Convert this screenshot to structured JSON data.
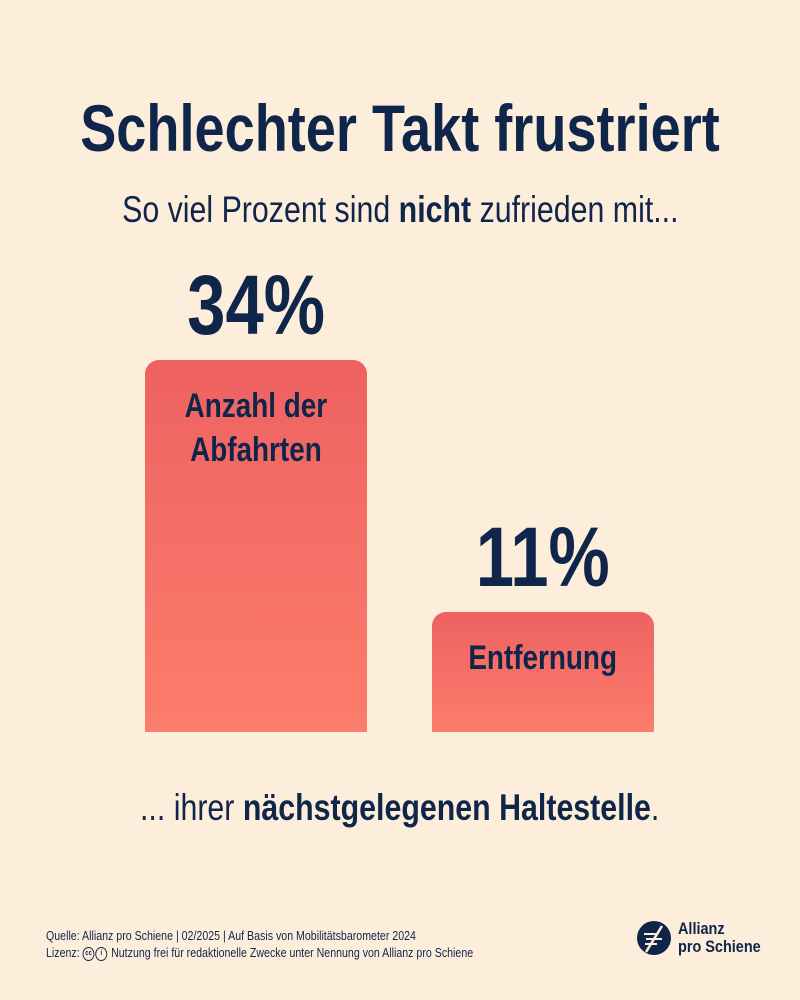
{
  "header": {
    "title": "Schlechter Takt frustriert",
    "subtitle_pre": "So viel Prozent sind ",
    "subtitle_bold": "nicht",
    "subtitle_post": " zufrieden mit..."
  },
  "chart_data": {
    "type": "bar",
    "categories": [
      "Anzahl der\nAbfahrten",
      "Entfernung"
    ],
    "values": [
      34,
      11
    ],
    "value_labels": [
      "34%",
      "11%"
    ],
    "ylim": [
      0,
      34
    ],
    "grid": false,
    "colors": {
      "bar_top": "#ee6262",
      "bar_bottom": "#fc7d6b",
      "text": "#10254a",
      "background": "#fdeedc"
    }
  },
  "closing": {
    "pre": "... ihrer ",
    "bold": "nächstgelegenen Haltestelle",
    "post": "."
  },
  "footer": {
    "source": "Quelle: Allianz pro Schiene | 02/2025 | Auf Basis von Mobilitätsbarometer 2024",
    "license_label": "Lizenz:",
    "license_icons": [
      "cc-icon",
      "by-attribution-icon"
    ],
    "license_text": "Nutzung frei für redaktionelle Zwecke unter Nennung von Allianz pro Schiene",
    "logo_line1": "Allianz",
    "logo_line2": "pro Schiene"
  }
}
